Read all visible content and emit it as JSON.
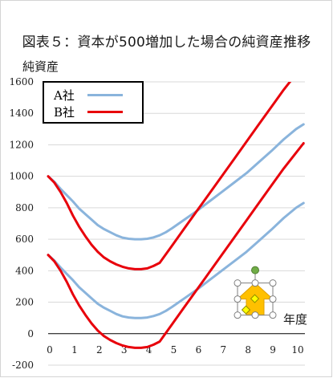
{
  "chart_data": {
    "type": "line",
    "title": "図表５：資本が500増加した場合の純資産推移",
    "ylabel": "純資産",
    "xlabel": "年度",
    "ylim": [
      -200,
      1600
    ],
    "xlim": [
      0,
      10.4
    ],
    "yticks": [
      -200,
      0,
      200,
      400,
      600,
      800,
      1000,
      1200,
      1400,
      1600
    ],
    "xticks": [
      0,
      1,
      2,
      3,
      4,
      5,
      6,
      7,
      8,
      9,
      10
    ],
    "grid": "horizontal",
    "legend_position": "top-left",
    "series": [
      {
        "name": "A社",
        "color": "#8ab4dc",
        "width": 3,
        "x": [
          0,
          0.25,
          0.5,
          0.75,
          1,
          1.25,
          1.5,
          1.75,
          2,
          2.25,
          2.5,
          2.75,
          3,
          3.25,
          3.5,
          3.75,
          4,
          4.25,
          4.5,
          4.75,
          5,
          5.5,
          6,
          6.5,
          7,
          7.5,
          8,
          8.5,
          9,
          9.5,
          10,
          10.3
        ],
        "y": [
          500,
          465,
          420,
          380,
          340,
          295,
          260,
          225,
          190,
          165,
          145,
          125,
          110,
          103,
          100,
          100,
          103,
          112,
          125,
          145,
          170,
          225,
          280,
          340,
          400,
          460,
          520,
          590,
          660,
          735,
          800,
          830
        ]
      },
      {
        "name": "A社",
        "color": "#8ab4dc",
        "width": 3,
        "x": [
          0,
          0.25,
          0.5,
          0.75,
          1,
          1.25,
          1.5,
          1.75,
          2,
          2.25,
          2.5,
          2.75,
          3,
          3.25,
          3.5,
          3.75,
          4,
          4.25,
          4.5,
          4.75,
          5,
          5.5,
          6,
          6.5,
          7,
          7.5,
          8,
          8.5,
          9,
          9.5,
          10,
          10.3
        ],
        "y": [
          1000,
          965,
          920,
          880,
          840,
          795,
          760,
          725,
          690,
          665,
          645,
          625,
          610,
          603,
          600,
          600,
          603,
          612,
          625,
          645,
          670,
          725,
          780,
          840,
          900,
          960,
          1020,
          1090,
          1160,
          1235,
          1300,
          1330
        ]
      },
      {
        "name": "B社",
        "color": "#e8000b",
        "width": 3,
        "x": [
          0,
          0.25,
          0.5,
          0.75,
          1,
          1.25,
          1.5,
          1.75,
          2,
          2.25,
          2.5,
          2.75,
          3,
          3.25,
          3.5,
          3.75,
          4,
          4.25,
          4.5,
          5,
          5.5,
          6,
          6.5,
          7,
          7.5,
          8,
          8.5,
          9,
          9.5,
          10,
          10.3
        ],
        "y": [
          500,
          460,
          400,
          330,
          250,
          180,
          120,
          65,
          20,
          -15,
          -40,
          -60,
          -75,
          -85,
          -90,
          -90,
          -85,
          -70,
          -50,
          60,
          170,
          280,
          390,
          500,
          610,
          720,
          830,
          940,
          1050,
          1150,
          1210
        ]
      },
      {
        "name": "B社",
        "color": "#e8000b",
        "width": 3,
        "x": [
          0,
          0.25,
          0.5,
          0.75,
          1,
          1.25,
          1.5,
          1.75,
          2,
          2.25,
          2.5,
          2.75,
          3,
          3.25,
          3.5,
          3.75,
          4,
          4.25,
          4.5,
          5,
          5.5,
          6,
          6.5,
          7,
          7.5,
          8,
          8.5,
          9,
          9.5,
          10,
          10.3
        ],
        "y": [
          1000,
          960,
          900,
          830,
          750,
          680,
          620,
          565,
          520,
          485,
          460,
          440,
          425,
          415,
          410,
          410,
          415,
          430,
          450,
          560,
          670,
          780,
          890,
          1000,
          1110,
          1220,
          1330,
          1440,
          1550,
          1650,
          1710
        ]
      }
    ],
    "legend": [
      {
        "name": "A社",
        "color": "#8ab4dc"
      },
      {
        "name": "B社",
        "color": "#e8000b"
      }
    ],
    "annotation": {
      "shape": "up-arrow",
      "fill": "#ffc000",
      "stroke": "#e0a000",
      "selected": true,
      "x": 8.35,
      "y": 220
    }
  }
}
